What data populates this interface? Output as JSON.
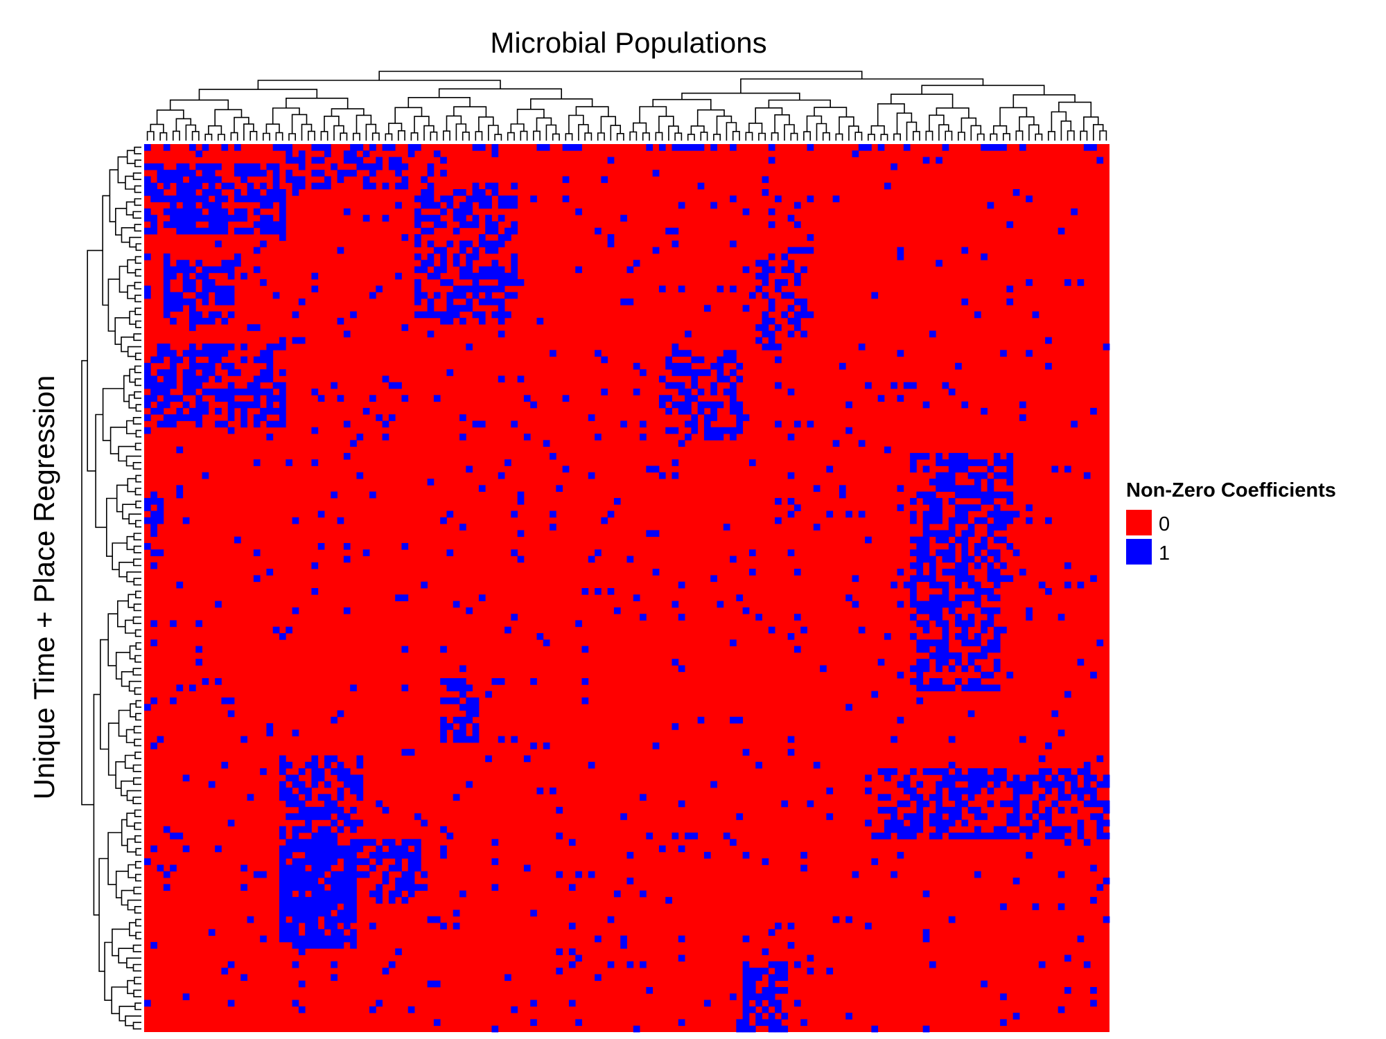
{
  "chart_data": {
    "type": "heatmap",
    "title": "Microbial Populations",
    "xlabel": "Microbial Populations",
    "ylabel": "Unique Time + Place Regression",
    "n_columns": 150,
    "n_rows": 138,
    "value_domain": [
      0,
      1
    ],
    "column_dendrogram": "top",
    "row_dendrogram": "left",
    "legend": {
      "title": "Non-Zero Coefficients",
      "position": "right",
      "entries": [
        {
          "label": "0",
          "value": 0,
          "color": "#ff0000"
        },
        {
          "label": "1",
          "value": 1,
          "color": "#0000ff"
        }
      ]
    },
    "colors": {
      "zero": "#ff0000",
      "one": "#0000ff"
    },
    "blocks": [
      {
        "cols": [
          0,
          22
        ],
        "rows": [
          3,
          14
        ],
        "density": 0.6
      },
      {
        "cols": [
          3,
          14
        ],
        "rows": [
          18,
          28
        ],
        "density": 0.6
      },
      {
        "cols": [
          0,
          22
        ],
        "rows": [
          31,
          44
        ],
        "density": 0.55
      },
      {
        "cols": [
          21,
          45
        ],
        "rows": [
          0,
          7
        ],
        "density": 0.4
      },
      {
        "cols": [
          42,
          58
        ],
        "rows": [
          6,
          18
        ],
        "density": 0.45
      },
      {
        "cols": [
          42,
          58
        ],
        "rows": [
          18,
          28
        ],
        "density": 0.45
      },
      {
        "cols": [
          81,
          93
        ],
        "rows": [
          32,
          46
        ],
        "density": 0.55
      },
      {
        "cols": [
          95,
          103
        ],
        "rows": [
          16,
          32
        ],
        "density": 0.45
      },
      {
        "cols": [
          119,
          135
        ],
        "rows": [
          48,
          68
        ],
        "density": 0.6
      },
      {
        "cols": [
          119,
          133
        ],
        "rows": [
          68,
          85
        ],
        "density": 0.5
      },
      {
        "cols": [
          21,
          34
        ],
        "rows": [
          95,
          110
        ],
        "density": 0.55
      },
      {
        "cols": [
          21,
          33
        ],
        "rows": [
          108,
          125
        ],
        "density": 0.85
      },
      {
        "cols": [
          32,
          43
        ],
        "rows": [
          108,
          118
        ],
        "density": 0.5
      },
      {
        "cols": [
          112,
          150
        ],
        "rows": [
          97,
          108
        ],
        "density": 0.5
      },
      {
        "cols": [
          93,
          100
        ],
        "rows": [
          127,
          138
        ],
        "density": 0.7
      },
      {
        "cols": [
          46,
          52
        ],
        "rows": [
          83,
          93
        ],
        "density": 0.55
      },
      {
        "cols": [
          0,
          3
        ],
        "rows": [
          54,
          67
        ],
        "density": 0.5
      },
      {
        "cols": [
          0,
          150
        ],
        "rows": [
          0,
          1
        ],
        "density": 0.3
      }
    ],
    "background_density": 0.03
  }
}
